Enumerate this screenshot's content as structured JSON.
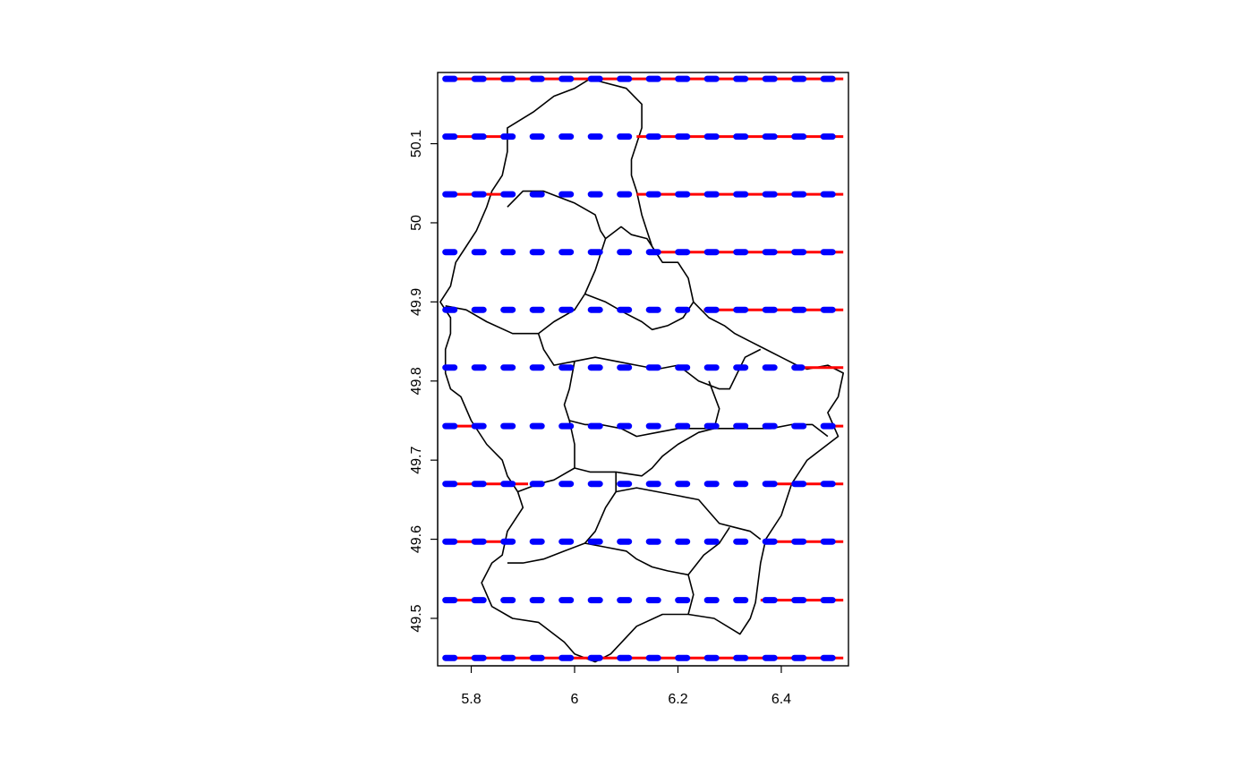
{
  "chart_data": {
    "type": "map",
    "title": "",
    "xlabel": "",
    "ylabel": "",
    "xlim": [
      5.735,
      6.53
    ],
    "ylim": [
      49.44,
      50.19
    ],
    "x_ticks": [
      {
        "value": 5.8,
        "label": "5.8"
      },
      {
        "value": 6.0,
        "label": "6"
      },
      {
        "value": 6.2,
        "label": "6.2"
      },
      {
        "value": 6.4,
        "label": "6.4"
      }
    ],
    "y_ticks": [
      {
        "value": 49.5,
        "label": "49.5"
      },
      {
        "value": 49.6,
        "label": "49.6"
      },
      {
        "value": 49.7,
        "label": "49.7"
      },
      {
        "value": 49.8,
        "label": "49.8"
      },
      {
        "value": 49.9,
        "label": "49.9"
      },
      {
        "value": 50.0,
        "label": "50"
      },
      {
        "value": 50.1,
        "label": "50.1"
      }
    ],
    "line_range": [
      5.75,
      6.52
    ],
    "series": [
      {
        "style": "solid",
        "color": "#ff0000",
        "lines": [
          {
            "y": 50.182,
            "segments": [
              [
                5.75,
                6.52
              ]
            ]
          },
          {
            "y": 50.109,
            "segments": [
              [
                5.75,
                5.87
              ],
              [
                6.12,
                6.52
              ]
            ]
          },
          {
            "y": 50.036,
            "segments": [
              [
                5.75,
                5.86
              ],
              [
                6.12,
                6.52
              ]
            ]
          },
          {
            "y": 49.963,
            "segments": [
              [
                5.75,
                5.77
              ],
              [
                6.16,
                6.52
              ]
            ]
          },
          {
            "y": 49.89,
            "segments": [
              [
                5.75,
                5.76
              ],
              [
                6.25,
                6.52
              ]
            ]
          },
          {
            "y": 49.817,
            "segments": [
              [
                5.75,
                5.76
              ],
              [
                6.44,
                6.52
              ]
            ]
          },
          {
            "y": 49.743,
            "segments": [
              [
                5.75,
                5.82
              ],
              [
                6.48,
                6.52
              ]
            ]
          },
          {
            "y": 49.67,
            "segments": [
              [
                5.75,
                5.91
              ],
              [
                6.38,
                6.52
              ]
            ]
          },
          {
            "y": 49.597,
            "segments": [
              [
                5.75,
                5.87
              ],
              [
                6.38,
                6.52
              ]
            ]
          },
          {
            "y": 49.523,
            "segments": [
              [
                5.75,
                5.82
              ],
              [
                6.36,
                6.52
              ]
            ]
          },
          {
            "y": 49.45,
            "segments": [
              [
                5.75,
                6.52
              ]
            ]
          }
        ]
      },
      {
        "style": "dashed",
        "color": "#0000ff",
        "lines": [
          {
            "y": 50.182,
            "segments": [
              [
                5.75,
                6.52
              ]
            ]
          },
          {
            "y": 50.109,
            "segments": [
              [
                5.75,
                6.52
              ]
            ]
          },
          {
            "y": 50.036,
            "segments": [
              [
                5.75,
                6.52
              ]
            ]
          },
          {
            "y": 49.963,
            "segments": [
              [
                5.75,
                6.52
              ]
            ]
          },
          {
            "y": 49.89,
            "segments": [
              [
                5.75,
                6.52
              ]
            ]
          },
          {
            "y": 49.817,
            "segments": [
              [
                5.75,
                6.44
              ]
            ]
          },
          {
            "y": 49.743,
            "segments": [
              [
                5.75,
                6.52
              ]
            ]
          },
          {
            "y": 49.67,
            "segments": [
              [
                5.75,
                6.52
              ]
            ]
          },
          {
            "y": 49.597,
            "segments": [
              [
                5.75,
                6.52
              ]
            ]
          },
          {
            "y": 49.523,
            "segments": [
              [
                5.75,
                6.52
              ]
            ]
          },
          {
            "y": 49.45,
            "segments": [
              [
                5.75,
                6.52
              ]
            ]
          }
        ]
      }
    ],
    "country_outline": [
      [
        6.03,
        50.182
      ],
      [
        6.1,
        50.17
      ],
      [
        6.13,
        50.15
      ],
      [
        6.13,
        50.12
      ],
      [
        6.12,
        50.1
      ],
      [
        6.11,
        50.08
      ],
      [
        6.11,
        50.06
      ],
      [
        6.12,
        50.04
      ],
      [
        6.13,
        50.01
      ],
      [
        6.14,
        49.99
      ],
      [
        6.15,
        49.97
      ],
      [
        6.17,
        49.95
      ],
      [
        6.2,
        49.95
      ],
      [
        6.22,
        49.93
      ],
      [
        6.23,
        49.9
      ],
      [
        6.26,
        49.88
      ],
      [
        6.29,
        49.87
      ],
      [
        6.31,
        49.86
      ],
      [
        6.34,
        49.85
      ],
      [
        6.37,
        49.84
      ],
      [
        6.4,
        49.83
      ],
      [
        6.43,
        49.82
      ],
      [
        6.45,
        49.815
      ],
      [
        6.49,
        49.82
      ],
      [
        6.52,
        49.81
      ],
      [
        6.51,
        49.78
      ],
      [
        6.49,
        49.76
      ],
      [
        6.51,
        49.73
      ],
      [
        6.49,
        49.72
      ],
      [
        6.45,
        49.7
      ],
      [
        6.42,
        49.67
      ],
      [
        6.4,
        49.63
      ],
      [
        6.37,
        49.6
      ],
      [
        6.36,
        49.57
      ],
      [
        6.35,
        49.52
      ],
      [
        6.34,
        49.5
      ],
      [
        6.32,
        49.48
      ],
      [
        6.27,
        49.5
      ],
      [
        6.22,
        49.505
      ],
      [
        6.17,
        49.505
      ],
      [
        6.12,
        49.49
      ],
      [
        6.07,
        49.455
      ],
      [
        6.04,
        49.445
      ],
      [
        6.0,
        49.455
      ],
      [
        5.98,
        49.47
      ],
      [
        5.96,
        49.48
      ],
      [
        5.93,
        49.495
      ],
      [
        5.88,
        49.5
      ],
      [
        5.84,
        49.515
      ],
      [
        5.82,
        49.545
      ],
      [
        5.84,
        49.57
      ],
      [
        5.86,
        49.58
      ],
      [
        5.87,
        49.61
      ],
      [
        5.9,
        49.64
      ],
      [
        5.89,
        49.66
      ],
      [
        5.87,
        49.68
      ],
      [
        5.86,
        49.7
      ],
      [
        5.83,
        49.72
      ],
      [
        5.8,
        49.75
      ],
      [
        5.78,
        49.78
      ],
      [
        5.76,
        49.79
      ],
      [
        5.75,
        49.81
      ],
      [
        5.75,
        49.84
      ],
      [
        5.76,
        49.86
      ],
      [
        5.76,
        49.88
      ],
      [
        5.74,
        49.9
      ],
      [
        5.76,
        49.92
      ],
      [
        5.77,
        49.95
      ],
      [
        5.79,
        49.97
      ],
      [
        5.81,
        49.99
      ],
      [
        5.83,
        50.02
      ],
      [
        5.84,
        50.04
      ],
      [
        5.86,
        50.06
      ],
      [
        5.87,
        50.09
      ],
      [
        5.87,
        50.12
      ],
      [
        5.92,
        50.14
      ],
      [
        5.96,
        50.16
      ],
      [
        6.0,
        50.17
      ],
      [
        6.03,
        50.182
      ]
    ],
    "district_borders": [
      [
        [
          5.75,
          49.895
        ],
        [
          5.79,
          49.89
        ],
        [
          5.83,
          49.875
        ],
        [
          5.88,
          49.86
        ],
        [
          5.93,
          49.86
        ],
        [
          5.96,
          49.875
        ],
        [
          6.0,
          49.89
        ],
        [
          6.02,
          49.91
        ],
        [
          6.04,
          49.94
        ],
        [
          6.06,
          49.98
        ],
        [
          6.09,
          49.995
        ],
        [
          6.11,
          49.985
        ],
        [
          6.14,
          49.98
        ],
        [
          6.15,
          49.97
        ]
      ],
      [
        [
          5.87,
          50.02
        ],
        [
          5.9,
          50.04
        ],
        [
          5.94,
          50.04
        ],
        [
          6.0,
          50.025
        ],
        [
          6.04,
          50.01
        ],
        [
          6.05,
          49.99
        ],
        [
          6.06,
          49.98
        ]
      ],
      [
        [
          6.02,
          49.91
        ],
        [
          6.06,
          49.9
        ],
        [
          6.1,
          49.885
        ],
        [
          6.13,
          49.875
        ],
        [
          6.15,
          49.865
        ],
        [
          6.18,
          49.87
        ],
        [
          6.21,
          49.88
        ],
        [
          6.23,
          49.9
        ]
      ],
      [
        [
          5.93,
          49.86
        ],
        [
          5.94,
          49.84
        ],
        [
          5.96,
          49.82
        ],
        [
          6.0,
          49.825
        ],
        [
          6.04,
          49.83
        ],
        [
          6.08,
          49.825
        ],
        [
          6.12,
          49.82
        ],
        [
          6.16,
          49.815
        ],
        [
          6.2,
          49.82
        ],
        [
          6.24,
          49.8
        ],
        [
          6.28,
          49.79
        ],
        [
          6.3,
          49.79
        ],
        [
          6.33,
          49.83
        ],
        [
          6.36,
          49.84
        ]
      ],
      [
        [
          6.26,
          49.8
        ],
        [
          6.28,
          49.765
        ],
        [
          6.27,
          49.74
        ],
        [
          6.24,
          49.74
        ],
        [
          6.2,
          49.74
        ],
        [
          6.16,
          49.735
        ],
        [
          6.12,
          49.73
        ],
        [
          6.09,
          49.74
        ],
        [
          6.05,
          49.745
        ],
        [
          6.02,
          49.745
        ],
        [
          5.99,
          49.75
        ],
        [
          5.98,
          49.77
        ],
        [
          5.99,
          49.79
        ],
        [
          6.0,
          49.825
        ]
      ],
      [
        [
          5.99,
          49.75
        ],
        [
          6.0,
          49.72
        ],
        [
          6.0,
          49.69
        ],
        [
          6.03,
          49.685
        ],
        [
          6.08,
          49.685
        ],
        [
          6.13,
          49.68
        ],
        [
          6.15,
          49.69
        ],
        [
          6.17,
          49.705
        ],
        [
          6.2,
          49.72
        ],
        [
          6.24,
          49.735
        ],
        [
          6.27,
          49.74
        ]
      ],
      [
        [
          6.27,
          49.74
        ],
        [
          6.33,
          49.74
        ],
        [
          6.38,
          49.74
        ],
        [
          6.42,
          49.745
        ],
        [
          6.46,
          49.745
        ],
        [
          6.49,
          49.73
        ]
      ],
      [
        [
          6.0,
          49.69
        ],
        [
          5.96,
          49.675
        ],
        [
          5.93,
          49.67
        ],
        [
          5.89,
          49.66
        ]
      ],
      [
        [
          6.08,
          49.685
        ],
        [
          6.08,
          49.66
        ],
        [
          6.06,
          49.64
        ],
        [
          6.04,
          49.61
        ],
        [
          6.02,
          49.595
        ],
        [
          5.98,
          49.585
        ],
        [
          5.94,
          49.575
        ],
        [
          5.9,
          49.57
        ],
        [
          5.87,
          49.57
        ]
      ],
      [
        [
          6.08,
          49.66
        ],
        [
          6.12,
          49.665
        ],
        [
          6.16,
          49.66
        ],
        [
          6.2,
          49.655
        ],
        [
          6.24,
          49.65
        ],
        [
          6.26,
          49.635
        ],
        [
          6.28,
          49.62
        ],
        [
          6.31,
          49.615
        ],
        [
          6.34,
          49.61
        ],
        [
          6.36,
          49.6
        ]
      ],
      [
        [
          6.02,
          49.595
        ],
        [
          6.06,
          49.59
        ],
        [
          6.1,
          49.585
        ],
        [
          6.12,
          49.575
        ],
        [
          6.15,
          49.565
        ],
        [
          6.18,
          49.56
        ],
        [
          6.22,
          49.555
        ],
        [
          6.23,
          49.53
        ],
        [
          6.22,
          49.505
        ]
      ],
      [
        [
          6.22,
          49.555
        ],
        [
          6.25,
          49.58
        ],
        [
          6.28,
          49.595
        ],
        [
          6.3,
          49.615
        ]
      ]
    ]
  }
}
